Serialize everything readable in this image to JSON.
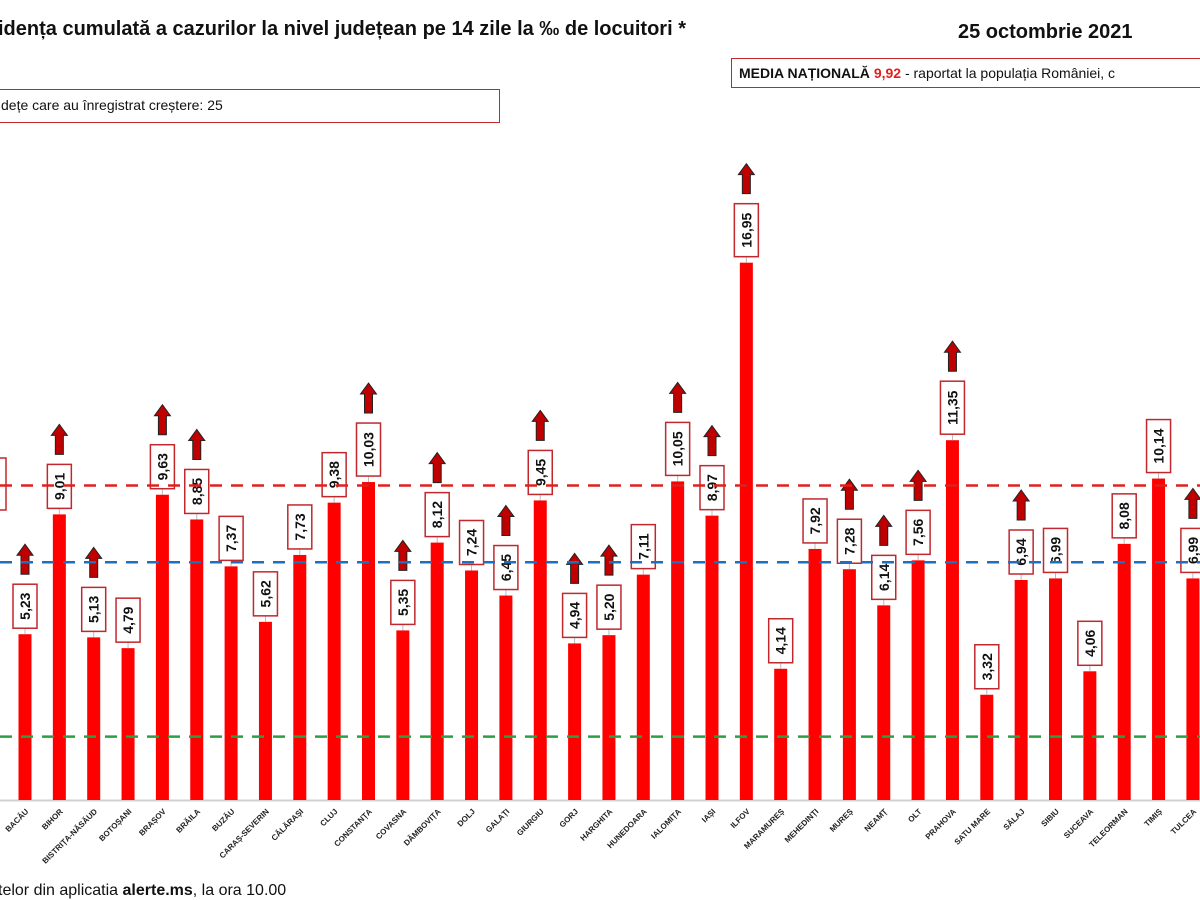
{
  "header": {
    "title": "idența cumulată a cazurilor la nivel județean pe 14 zile la ‰ de locuitori *",
    "date": "25 octombrie 2021",
    "media_label": "MEDIA NAȚIONALĂ",
    "media_value": "9,92",
    "media_suffix": " -  raportat la populația României, c",
    "counter_text": "dețe care au înregistrat creștere:  25"
  },
  "footer": {
    "prefix": "telor din aplicatia ",
    "bold": "alerte.ms",
    "suffix": ", la ora 10.00"
  },
  "chart_data": {
    "type": "bar",
    "title": "",
    "xlabel": "",
    "ylabel": "",
    "ylim": [
      0,
      17.5
    ],
    "grid": false,
    "colors": {
      "bar": "#ff0000",
      "label_border": "#c0282d",
      "arrow": "#c00000",
      "national_line": "#e0201f",
      "blue_line": "#1f6fbf",
      "green_line": "#2e9e44"
    },
    "reference_lines": [
      {
        "value": 9.92,
        "color": "#e0201f"
      },
      {
        "value": 7.5,
        "color": "#1f6fbf"
      },
      {
        "value": 2,
        "color": "#2e9e44"
      }
    ],
    "categories": [
      "BACĂU",
      "BIHOR",
      "BISTRIȚA-NĂSĂUD",
      "BOTOȘANI",
      "BRAȘOV",
      "BRĂILA",
      "BUZĂU",
      "CARAȘ-SEVERIN",
      "CĂLĂRAȘI",
      "CLUJ",
      "CONSTANȚA",
      "COVASNA",
      "DÂMBOVIȚA",
      "DOLJ",
      "GALAȚI",
      "GIURGIU",
      "GORJ",
      "HARGHITA",
      "HUNEDOARA",
      "IALOMIȚA",
      "IAȘI",
      "ILFOV",
      "MARAMUREȘ",
      "MEHEDINȚI",
      "MUREȘ",
      "NEAMȚ",
      "OLT",
      "PRAHOVA",
      "SATU MARE",
      "SĂLAJ",
      "SIBIU",
      "SUCEAVA",
      "TELEORMAN",
      "TIMIȘ",
      "TULCEA"
    ],
    "values": [
      5.23,
      9.01,
      5.13,
      4.79,
      9.63,
      8.85,
      7.37,
      5.62,
      7.73,
      9.38,
      10.03,
      5.35,
      8.12,
      7.24,
      6.45,
      9.45,
      4.94,
      5.2,
      7.11,
      10.05,
      8.97,
      16.95,
      4.14,
      7.92,
      7.28,
      6.14,
      7.56,
      11.35,
      3.32,
      6.94,
      6.99,
      4.06,
      8.08,
      10.14,
      6.99
    ],
    "labels": [
      "5,23",
      "9,01",
      "5,13",
      "4,79",
      "9,63",
      "8,85",
      "7,37",
      "5,62",
      "7,73",
      "9,38",
      "10,03",
      "5,35",
      "8,12",
      "7,24",
      "6,45",
      "9,45",
      "4,94",
      "5,20",
      "7,11",
      "10,05",
      "8,97",
      "16,95",
      "4,14",
      "7,92",
      "7,28",
      "6,14",
      "7,56",
      "11,35",
      "3,32",
      "6,94",
      "6,99",
      "4,06",
      "8,08",
      "10,14",
      "6,99"
    ],
    "increase": [
      true,
      true,
      true,
      false,
      true,
      true,
      false,
      false,
      false,
      false,
      true,
      true,
      true,
      false,
      true,
      true,
      true,
      true,
      false,
      true,
      true,
      true,
      false,
      false,
      true,
      true,
      true,
      true,
      false,
      true,
      false,
      false,
      false,
      false,
      true
    ]
  }
}
